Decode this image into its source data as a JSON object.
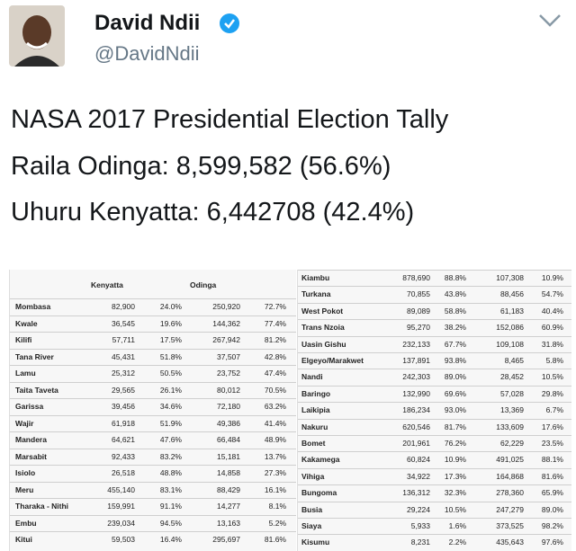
{
  "header": {
    "name": "David Ndii",
    "handle": "@DavidNdii"
  },
  "tweet": {
    "lines": [
      "NASA 2017 Presidential Election Tally",
      "Raila Odinga: 8,599,582 (56.6%)",
      "Uhuru Kenyatta: 6,442708 (42.4%)"
    ]
  },
  "left_table": {
    "headers": [
      "Kenyatta",
      "Odinga"
    ],
    "rows": [
      [
        "Mombasa",
        "82,900",
        "24.0%",
        "250,920",
        "72.7%"
      ],
      [
        "Kwale",
        "36,545",
        "19.6%",
        "144,362",
        "77.4%"
      ],
      [
        "Kilifi",
        "57,711",
        "17.5%",
        "267,942",
        "81.2%"
      ],
      [
        "Tana River",
        "45,431",
        "51.8%",
        "37,507",
        "42.8%"
      ],
      [
        "Lamu",
        "25,312",
        "50.5%",
        "23,752",
        "47.4%"
      ],
      [
        "Taita Taveta",
        "29,565",
        "26.1%",
        "80,012",
        "70.5%"
      ],
      [
        "Garissa",
        "39,456",
        "34.6%",
        "72,180",
        "63.2%"
      ],
      [
        "Wajir",
        "61,918",
        "51.9%",
        "49,386",
        "41.4%"
      ],
      [
        "Mandera",
        "64,621",
        "47.6%",
        "66,484",
        "48.9%"
      ],
      [
        "Marsabit",
        "92,433",
        "83.2%",
        "15,181",
        "13.7%"
      ],
      [
        "Isiolo",
        "26,518",
        "48.8%",
        "14,858",
        "27.3%"
      ],
      [
        "Meru",
        "455,140",
        "83.1%",
        "88,429",
        "16.1%"
      ],
      [
        "Tharaka - Nithi",
        "159,991",
        "91.1%",
        "14,277",
        "8.1%"
      ],
      [
        "Embu",
        "239,034",
        "94.5%",
        "13,163",
        "5.2%"
      ],
      [
        "Kitui",
        "59,503",
        "16.4%",
        "295,697",
        "81.6%"
      ]
    ]
  },
  "right_table": {
    "rows": [
      [
        "Kiambu",
        "878,690",
        "88.8%",
        "107,308",
        "10.9%"
      ],
      [
        "Turkana",
        "70,855",
        "43.8%",
        "88,456",
        "54.7%"
      ],
      [
        "West Pokot",
        "89,089",
        "58.8%",
        "61,183",
        "40.4%"
      ],
      [
        "Trans Nzoia",
        "95,270",
        "38.2%",
        "152,086",
        "60.9%"
      ],
      [
        "Uasin Gishu",
        "232,133",
        "67.7%",
        "109,108",
        "31.8%"
      ],
      [
        "Elgeyo/Marakwet",
        "137,891",
        "93.8%",
        "8,465",
        "5.8%"
      ],
      [
        "Nandi",
        "242,303",
        "89.0%",
        "28,452",
        "10.5%"
      ],
      [
        "Baringo",
        "132,990",
        "69.6%",
        "57,028",
        "29.8%"
      ],
      [
        "Laikipia",
        "186,234",
        "93.0%",
        "13,369",
        "6.7%"
      ],
      [
        "Nakuru",
        "620,546",
        "81.7%",
        "133,609",
        "17.6%"
      ],
      [
        "Bomet",
        "201,961",
        "76.2%",
        "62,229",
        "23.5%"
      ],
      [
        "Kakamega",
        "60,824",
        "10.9%",
        "491,025",
        "88.1%"
      ],
      [
        "Vihiga",
        "34,922",
        "17.3%",
        "164,868",
        "81.6%"
      ],
      [
        "Bungoma",
        "136,312",
        "32.3%",
        "278,360",
        "65.9%"
      ],
      [
        "Busia",
        "29,224",
        "10.5%",
        "247,279",
        "89.0%"
      ],
      [
        "Siaya",
        "5,933",
        "1.6%",
        "373,525",
        "98.2%"
      ],
      [
        "Kisumu",
        "8,231",
        "2.2%",
        "435,643",
        "97.6%"
      ]
    ]
  }
}
